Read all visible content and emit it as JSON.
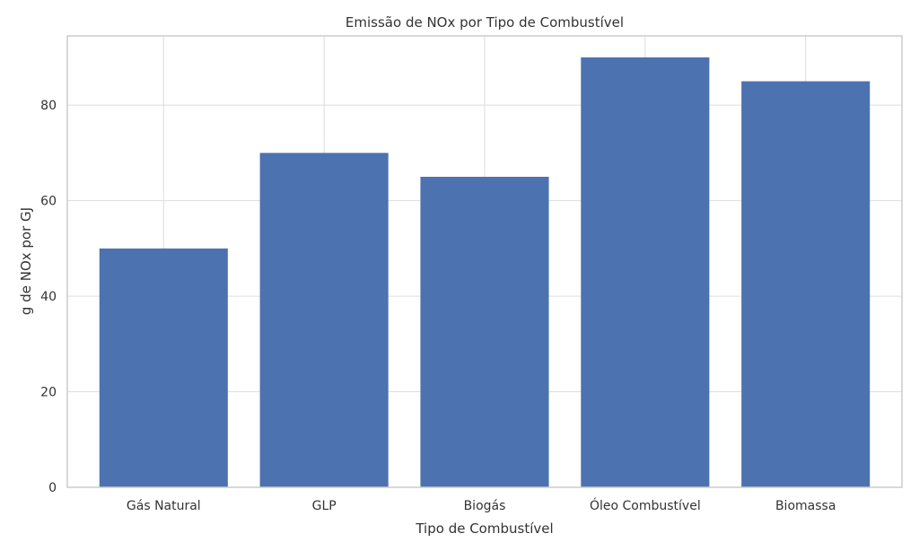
{
  "chart_data": {
    "type": "bar",
    "title": "Emissão de NOx por Tipo de Combustível",
    "xlabel": "Tipo de Combustível",
    "ylabel": "g de NOx por GJ",
    "categories": [
      "Gás Natural",
      "GLP",
      "Biogás",
      "Óleo Combustível",
      "Biomassa"
    ],
    "values": [
      50,
      70,
      65,
      90,
      85
    ],
    "ylim": [
      0,
      94.5
    ],
    "yticks": [
      0,
      20,
      40,
      60,
      80
    ],
    "grid": true,
    "bar_color": "#4c72b0"
  }
}
